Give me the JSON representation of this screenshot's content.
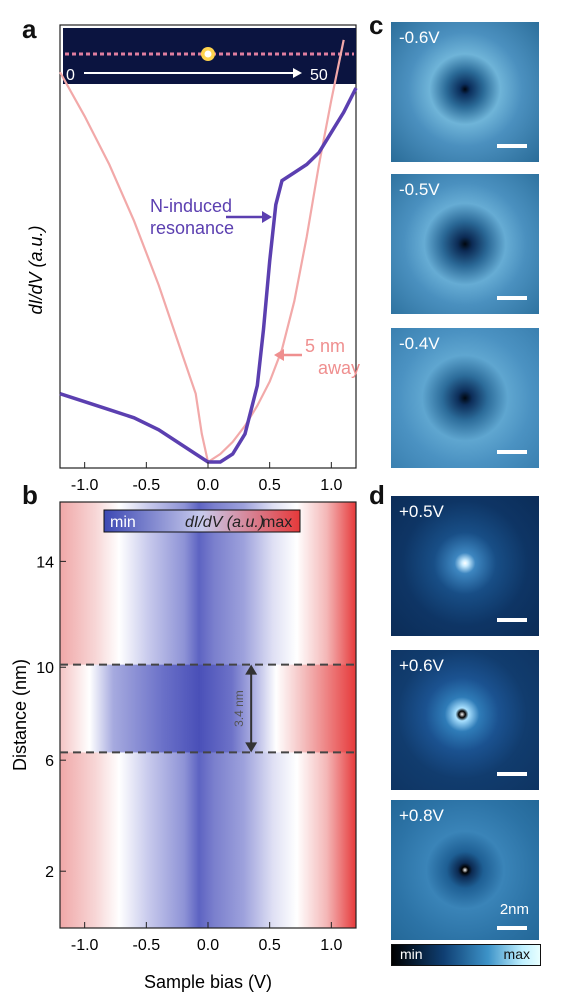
{
  "panels": {
    "a": "a",
    "b": "b",
    "c": "c",
    "d": "d"
  },
  "panel_a": {
    "ylabel": "dI/dV (a.u.)",
    "inset_start": "0",
    "inset_end": "50",
    "annotation_resonance_line1": "N-induced",
    "annotation_resonance_line2": "resonance",
    "annotation_away_line1": "5 nm",
    "annotation_away_line2": "away",
    "x_ticks": [
      "-1.0",
      "-0.5",
      "0.0",
      "0.5",
      "1.0"
    ]
  },
  "panel_b": {
    "ylabel": "Distance (nm)",
    "xlabel": "Sample bias (V)",
    "colorbar_min": "min",
    "colorbar_label": "dI/dV (a.u.)",
    "colorbar_max": "max",
    "width_label": "3.4 nm",
    "x_ticks": [
      "-1.0",
      "-0.5",
      "0.0",
      "0.5",
      "1.0"
    ],
    "y_ticks": [
      "14",
      "10",
      "6",
      "2"
    ]
  },
  "panel_c": {
    "labels": [
      "-0.6V",
      "-0.5V",
      "-0.4V"
    ]
  },
  "panel_d": {
    "labels": [
      "+0.5V",
      "+0.6V",
      "+0.8V"
    ],
    "scale_label": "2nm",
    "cbar_min": "min",
    "cbar_max": "max"
  },
  "colors": {
    "resonance": "#5b3fb0",
    "away": "#f2a9a9",
    "cold": "#3d4fb8",
    "hot": "#e8393a"
  },
  "chart_data": [
    {
      "type": "line",
      "ylabel": "dI/dV (a.u.)",
      "xlim": [
        -1.2,
        1.2
      ],
      "series": [
        {
          "name": "N-induced resonance",
          "x": [
            -1.2,
            -1.0,
            -0.8,
            -0.6,
            -0.4,
            -0.2,
            -0.1,
            0.0,
            0.1,
            0.2,
            0.3,
            0.4,
            0.45,
            0.5,
            0.55,
            0.6,
            0.7,
            0.8,
            0.9,
            1.0,
            1.1,
            1.2
          ],
          "y": [
            0.17,
            0.15,
            0.13,
            0.11,
            0.08,
            0.04,
            0.02,
            0.0,
            0.0,
            0.02,
            0.07,
            0.19,
            0.33,
            0.5,
            0.64,
            0.7,
            0.72,
            0.74,
            0.77,
            0.82,
            0.87,
            0.93
          ]
        },
        {
          "name": "5 nm away",
          "x": [
            -1.2,
            -1.0,
            -0.8,
            -0.6,
            -0.4,
            -0.2,
            -0.1,
            -0.05,
            0.0,
            0.1,
            0.2,
            0.3,
            0.4,
            0.5,
            0.6,
            0.7,
            0.8,
            0.9,
            1.0,
            1.1
          ],
          "y": [
            0.97,
            0.86,
            0.74,
            0.6,
            0.44,
            0.26,
            0.17,
            0.07,
            0.0,
            0.02,
            0.05,
            0.09,
            0.14,
            0.2,
            0.28,
            0.4,
            0.56,
            0.74,
            0.9,
            1.05
          ]
        }
      ]
    },
    {
      "type": "heatmap",
      "xlabel": "Sample bias (V)",
      "ylabel": "Distance (nm)",
      "xlim": [
        -1.2,
        1.2
      ],
      "ylim": [
        0,
        16.5
      ],
      "band": [
        6.8,
        10.2
      ],
      "width_label": "3.4 nm"
    }
  ]
}
